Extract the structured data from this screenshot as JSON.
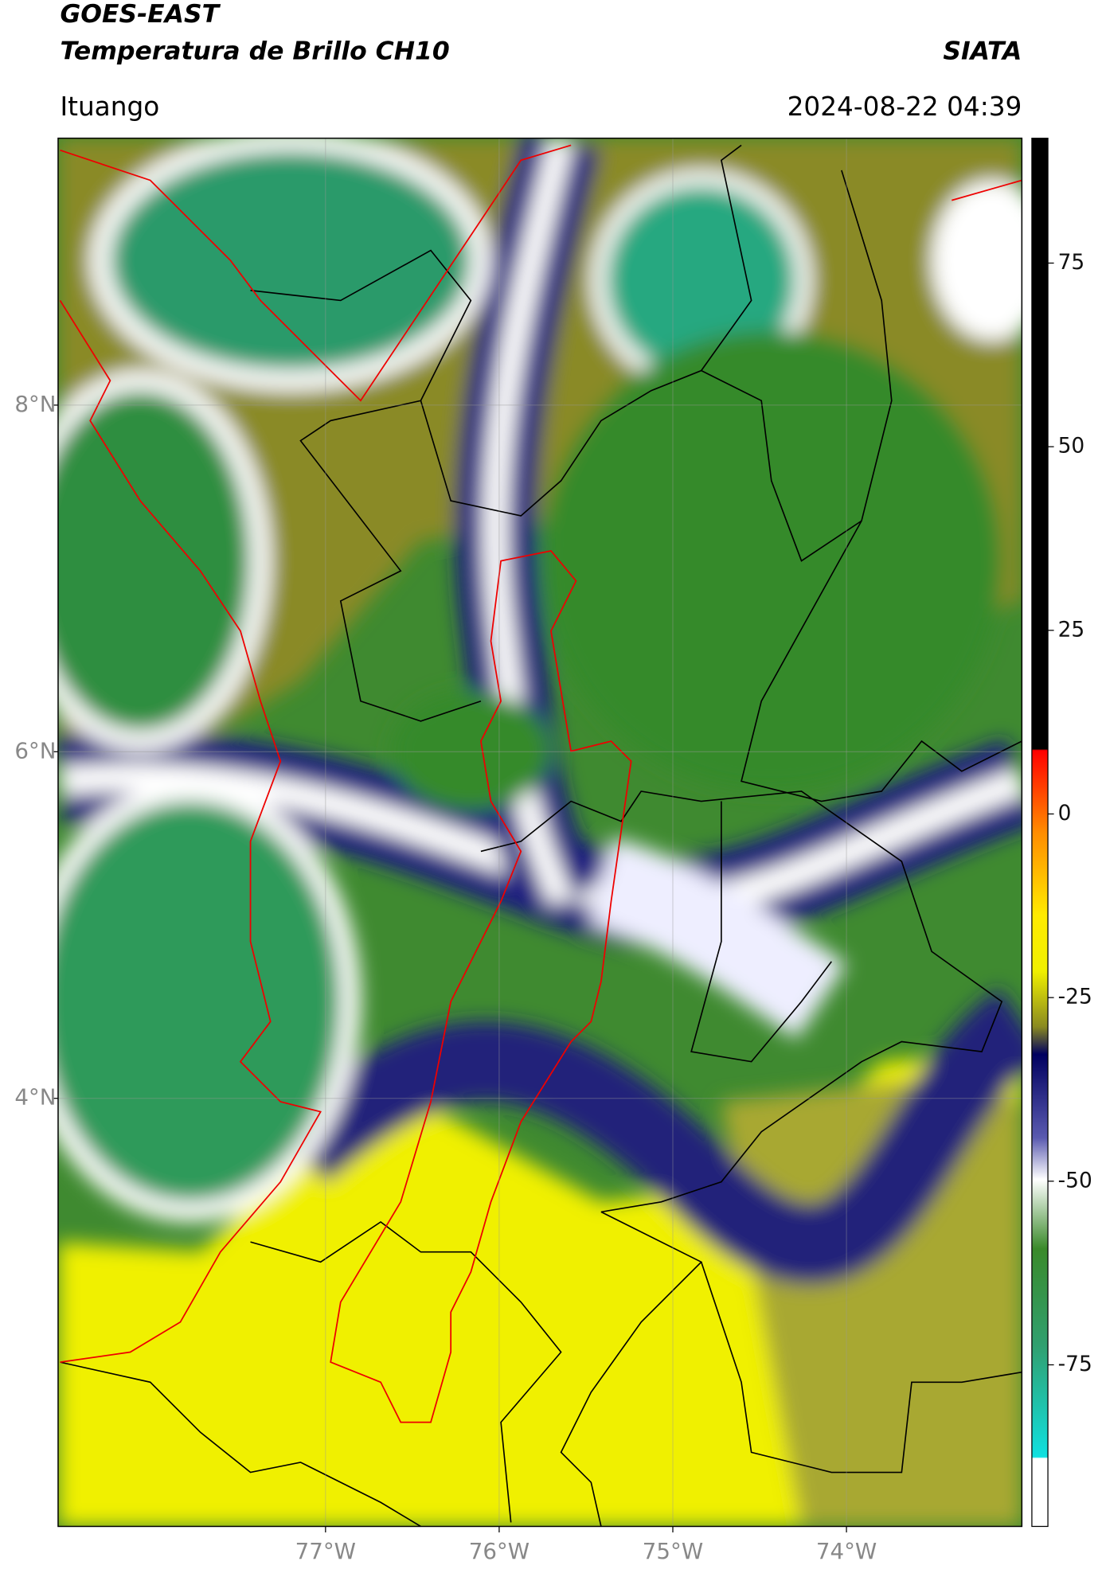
{
  "header": {
    "title": "GOES-EAST",
    "subtitle": "Temperatura de Brillo CH10",
    "source": "SIATA",
    "region": "Ituango",
    "timestamp": "2024-08-22 04:39"
  },
  "map": {
    "xlim": [
      -78.54,
      -72.99
    ],
    "ylim": [
      1.53,
      9.54
    ],
    "xticks": [
      {
        "value": -77,
        "label": "77°W"
      },
      {
        "value": -76,
        "label": "76°W"
      },
      {
        "value": -75,
        "label": "75°W"
      },
      {
        "value": -74,
        "label": "74°W"
      }
    ],
    "yticks": [
      {
        "value": 8,
        "label": "8°N"
      },
      {
        "value": 6,
        "label": "6°N"
      },
      {
        "value": 4,
        "label": "4°N"
      }
    ],
    "grid": true
  },
  "colorbar": {
    "lim": [
      -97,
      92
    ],
    "ticks": [
      75,
      50,
      25,
      0,
      -25,
      -50,
      -75
    ]
  }
}
